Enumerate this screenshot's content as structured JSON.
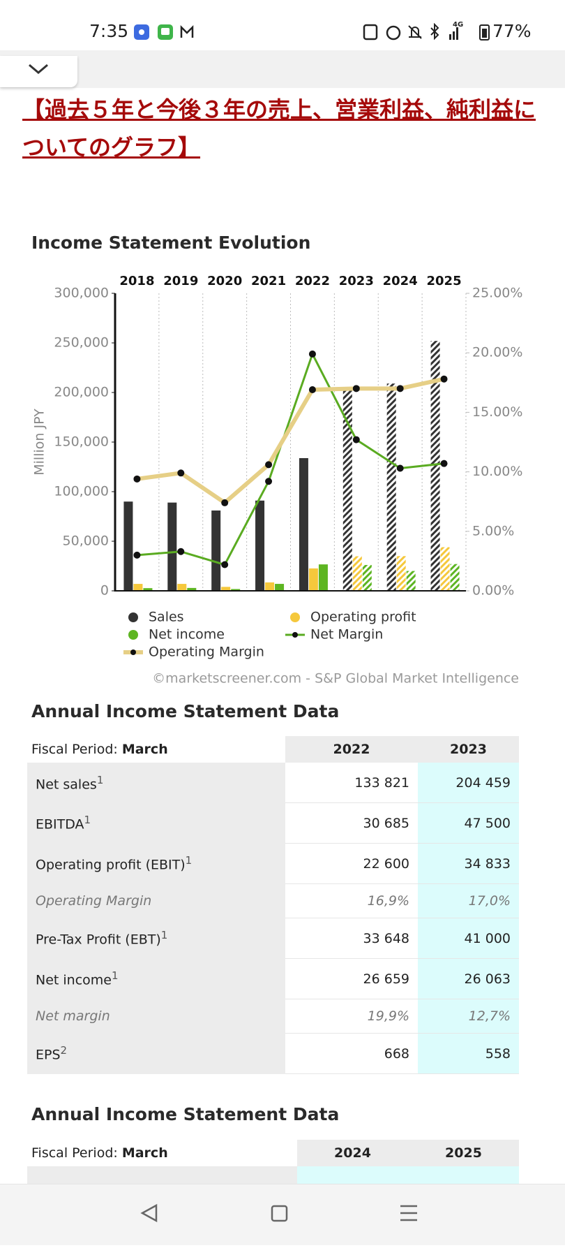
{
  "status_bar": {
    "time": "7:35",
    "network": "4G",
    "battery": "77%"
  },
  "heading": "【過去５年と今後３年の売上、営業利益、純利益についてのグラフ】",
  "chart_data": {
    "type": "combo",
    "title": "Income Statement Evolution",
    "categories": [
      "2018",
      "2019",
      "2020",
      "2021",
      "2022",
      "2023",
      "2024",
      "2025"
    ],
    "y_label": "Million JPY",
    "ylim": [
      0,
      300000
    ],
    "yticks": [
      0,
      {
        "value": 50000,
        "label": "50,000"
      },
      {
        "value": 100000,
        "label": "100,000"
      },
      {
        "value": 150000,
        "label": "150,000"
      },
      {
        "value": 200000,
        "label": "200,000"
      },
      {
        "value": 250000,
        "label": "250,000"
      },
      {
        "value": 300000,
        "label": "300,000"
      }
    ],
    "y2lim": [
      0,
      25
    ],
    "y2ticks": [
      {
        "value": 0,
        "label": "0.00%"
      },
      {
        "value": 5,
        "label": "5.00%"
      },
      {
        "value": 10,
        "label": "10.00%"
      },
      {
        "value": 15,
        "label": "15.00%"
      },
      {
        "value": 20,
        "label": "20.00%"
      },
      {
        "value": 25,
        "label": "25.00%"
      }
    ],
    "grid": true,
    "legend": "bottom",
    "marker_color": "#111111",
    "series": [
      {
        "name": "Sales",
        "type": "bar",
        "color": "#333333",
        "values": [
          90000,
          89000,
          81000,
          91000,
          133821,
          204459,
          209000,
          252000
        ],
        "hatched": [
          false,
          false,
          false,
          false,
          false,
          true,
          true,
          true
        ]
      },
      {
        "name": "Operating profit",
        "type": "bar",
        "color": "#f5c83c",
        "values": [
          7000,
          7000,
          4000,
          8500,
          22600,
          34833,
          35000,
          44000
        ],
        "hatched": [
          false,
          false,
          false,
          false,
          false,
          true,
          true,
          true
        ]
      },
      {
        "name": "Net income",
        "type": "bar",
        "color": "#5db522",
        "values": [
          2700,
          2900,
          1800,
          7000,
          26659,
          26063,
          20000,
          27000
        ],
        "hatched": [
          false,
          false,
          false,
          false,
          false,
          true,
          true,
          true
        ]
      },
      {
        "name": "Net Margin",
        "type": "line",
        "axis": "y2",
        "color": "#5aab21",
        "line_width": 3,
        "values": [
          3.0,
          3.3,
          2.2,
          9.2,
          19.9,
          12.7,
          10.3,
          10.7
        ]
      },
      {
        "name": "Operating Margin",
        "type": "line",
        "axis": "y2",
        "color": "#e6cf86",
        "line_width": 6,
        "values": [
          9.4,
          9.9,
          7.4,
          10.6,
          16.9,
          17.0,
          17.0,
          17.8
        ]
      }
    ],
    "source": "©marketscreener.com - S&P Global Market Intelligence"
  },
  "tables": [
    {
      "title": "Annual Income Statement Data",
      "period_label": "Fiscal Period:",
      "period": "March",
      "columns": [
        "2022",
        "2023"
      ],
      "rows": [
        {
          "label": "Net sales",
          "note": "1",
          "values": [
            "133 821",
            "204 459"
          ]
        },
        {
          "label": "EBITDA",
          "note": "1",
          "values": [
            "30 685",
            "47 500"
          ]
        },
        {
          "label": "Operating profit (EBIT)",
          "note": "1",
          "values": [
            "22 600",
            "34 833"
          ]
        },
        {
          "label": "Operating Margin",
          "emphasis": "italic",
          "values": [
            "16,9%",
            "17,0%"
          ]
        },
        {
          "label": "Pre-Tax Profit (EBT)",
          "note": "1",
          "values": [
            "33 648",
            "41 000"
          ]
        },
        {
          "label": "Net income",
          "note": "1",
          "values": [
            "26 659",
            "26 063"
          ]
        },
        {
          "label": "Net margin",
          "emphasis": "italic",
          "values": [
            "19,9%",
            "12,7%"
          ]
        },
        {
          "label": "EPS",
          "note": "2",
          "values": [
            "668",
            "558"
          ]
        }
      ]
    },
    {
      "title": "Annual Income Statement Data",
      "period_label": "Fiscal Period:",
      "period": "March",
      "columns": [
        "2024",
        "2025"
      ],
      "rows": []
    }
  ]
}
